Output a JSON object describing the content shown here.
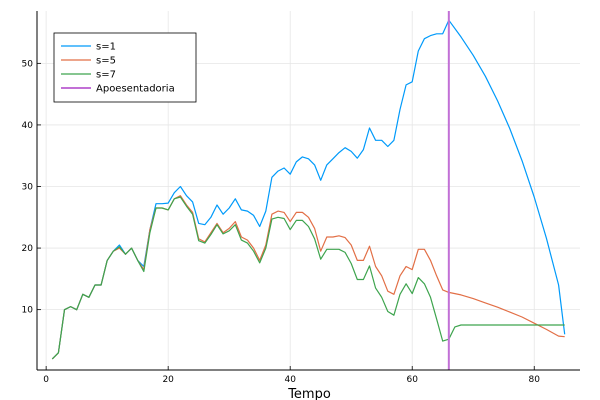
{
  "chart_data": {
    "type": "line",
    "title": "",
    "xlabel": "Tempo",
    "ylabel": "",
    "xlim": [
      -1.5,
      87.5
    ],
    "ylim": [
      0.2,
      58.5
    ],
    "xticks": [
      0,
      20,
      40,
      60,
      80
    ],
    "yticks": [
      10,
      20,
      30,
      40,
      50
    ],
    "grid": true,
    "legend_position": "top-left",
    "series": [
      {
        "name": "s=1",
        "color": "#009AFA",
        "x": [
          1,
          2,
          3,
          4,
          5,
          6,
          7,
          8,
          9,
          10,
          11,
          12,
          13,
          14,
          15,
          16,
          17,
          18,
          19,
          20,
          21,
          22,
          23,
          24,
          25,
          26,
          27,
          28,
          29,
          30,
          31,
          32,
          33,
          34,
          35,
          36,
          37,
          38,
          39,
          40,
          41,
          42,
          43,
          44,
          45,
          46,
          47,
          48,
          49,
          50,
          51,
          52,
          53,
          54,
          55,
          56,
          57,
          58,
          59,
          60,
          61,
          62,
          63,
          64,
          65,
          66,
          68,
          70,
          72,
          74,
          76,
          78,
          80,
          82,
          84,
          85
        ],
        "y": [
          2,
          3,
          10,
          10.5,
          10,
          12.5,
          12,
          14,
          14,
          18,
          19.5,
          20.5,
          19,
          20,
          18,
          17,
          23,
          27.2,
          27.2,
          27.3,
          29,
          30,
          28.5,
          27.5,
          24,
          23.8,
          25,
          27,
          25.5,
          26.5,
          28,
          26.2,
          26,
          25.3,
          23.5,
          26,
          31.5,
          32.5,
          33,
          32,
          34,
          34.8,
          34.5,
          33.5,
          31,
          33.5,
          34.5,
          35.5,
          36.3,
          35.7,
          34.6,
          36,
          39.5,
          37.5,
          37.5,
          36.5,
          37.5,
          42.5,
          46.5,
          47,
          52,
          54,
          54.5,
          54.8,
          54.8,
          57,
          54.3,
          51.3,
          47.9,
          43.9,
          39.4,
          34.2,
          28.3,
          21.6,
          14,
          6
        ]
      },
      {
        "name": "s=5",
        "color": "#E26F46",
        "x": [
          1,
          2,
          3,
          4,
          5,
          6,
          7,
          8,
          9,
          10,
          11,
          12,
          13,
          14,
          15,
          16,
          17,
          18,
          19,
          20,
          21,
          22,
          23,
          24,
          25,
          26,
          27,
          28,
          29,
          30,
          31,
          32,
          33,
          34,
          35,
          36,
          37,
          38,
          39,
          40,
          41,
          42,
          43,
          44,
          45,
          46,
          47,
          48,
          49,
          50,
          51,
          52,
          53,
          54,
          55,
          56,
          57,
          58,
          59,
          60,
          61,
          62,
          63,
          64,
          65,
          66,
          68,
          70,
          72,
          74,
          76,
          78,
          80,
          82,
          84,
          85
        ],
        "y": [
          2,
          3,
          10,
          10.5,
          10,
          12.5,
          12,
          14,
          14,
          18,
          19.5,
          20,
          19,
          20,
          18,
          16.5,
          23,
          26.5,
          26.5,
          26.2,
          28,
          28.5,
          27,
          25.8,
          21.5,
          21,
          22.5,
          24,
          22.5,
          23.2,
          24.3,
          21.8,
          21.3,
          20,
          18,
          20.5,
          25.5,
          26,
          25.8,
          24.3,
          25.8,
          25.8,
          25,
          23.2,
          19.5,
          21.8,
          21.8,
          22,
          21.7,
          20.5,
          18,
          18,
          20.3,
          17,
          15.5,
          13,
          12.5,
          15.5,
          17,
          16.5,
          19.8,
          19.8,
          18,
          15.5,
          13.2,
          12.8,
          12.4,
          11.8,
          11.1,
          10.4,
          9.6,
          8.8,
          7.8,
          6.8,
          5.7,
          5.6
        ]
      },
      {
        "name": "s=7",
        "color": "#3EA44E",
        "x": [
          1,
          2,
          3,
          4,
          5,
          6,
          7,
          8,
          9,
          10,
          11,
          12,
          13,
          14,
          15,
          16,
          17,
          18,
          19,
          20,
          21,
          22,
          23,
          24,
          25,
          26,
          27,
          28,
          29,
          30,
          31,
          32,
          33,
          34,
          35,
          36,
          37,
          38,
          39,
          40,
          41,
          42,
          43,
          44,
          45,
          46,
          47,
          48,
          49,
          50,
          51,
          52,
          53,
          54,
          55,
          56,
          57,
          58,
          59,
          60,
          61,
          62,
          63,
          64,
          65,
          66,
          67,
          68,
          70,
          75,
          80,
          85
        ],
        "y": [
          2,
          3,
          10,
          10.5,
          10,
          12.5,
          12,
          14,
          14,
          18,
          19.5,
          20.2,
          19,
          20,
          18,
          16.2,
          22.5,
          26.5,
          26.5,
          26.2,
          28,
          28.3,
          26.8,
          25.5,
          21.2,
          20.8,
          22.2,
          23.8,
          22.3,
          22.8,
          23.8,
          21.3,
          20.8,
          19.5,
          17.6,
          20,
          24.7,
          25,
          24.8,
          23,
          24.5,
          24.5,
          23.5,
          21.5,
          18.2,
          19.8,
          19.8,
          19.8,
          19.3,
          17.5,
          14.9,
          14.9,
          17.1,
          13.5,
          12,
          9.7,
          9.1,
          12.5,
          14.2,
          12.6,
          15.2,
          14.2,
          12,
          8.5,
          4.9,
          5.2,
          7.2,
          7.5,
          7.5,
          7.5,
          7.5,
          7.5
        ]
      },
      {
        "name": "Apoesentadoria",
        "color": "#C270D6",
        "type": "vline",
        "x": 66
      }
    ]
  }
}
